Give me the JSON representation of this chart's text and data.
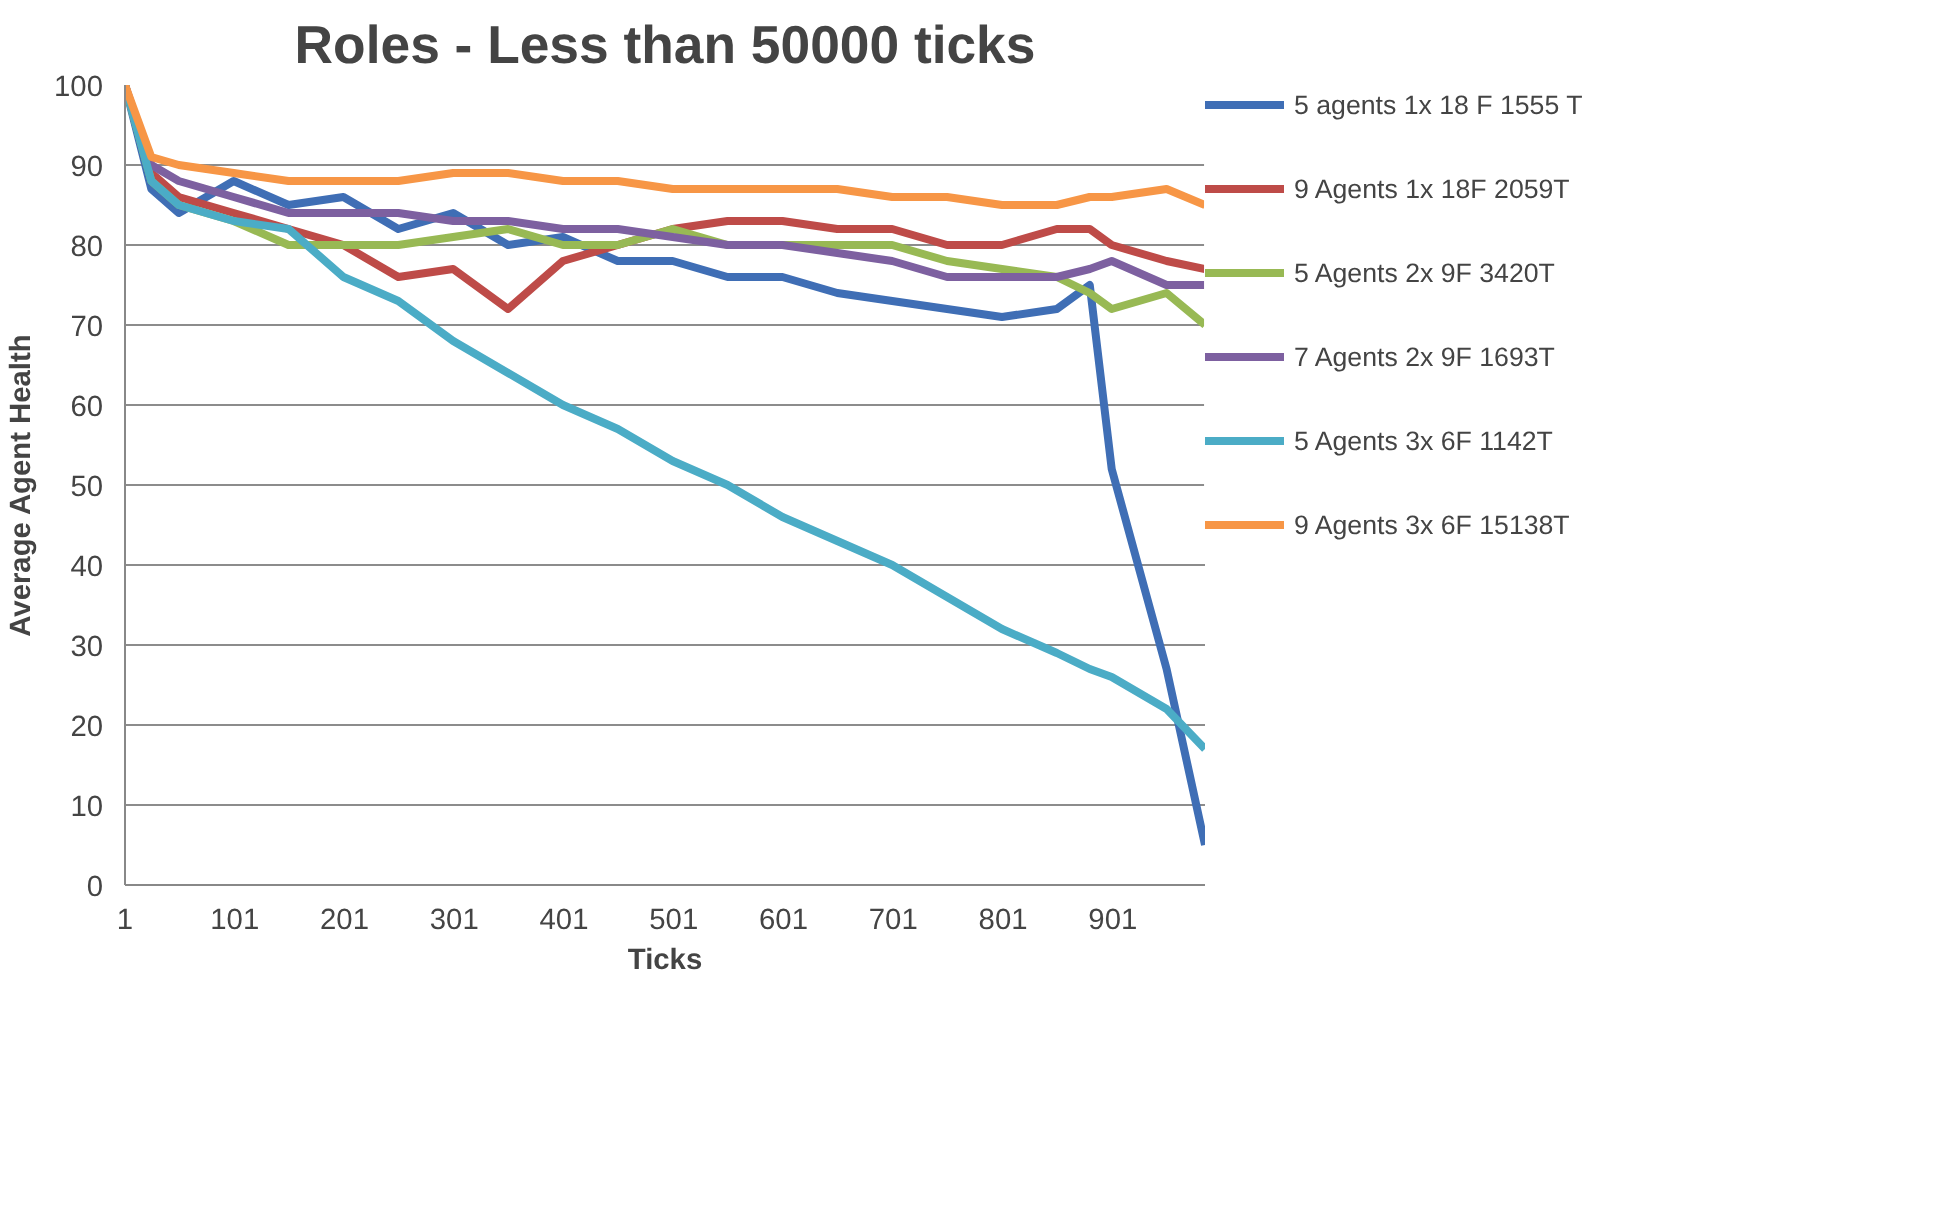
{
  "chart_data": {
    "type": "line",
    "title": "Roles - Less than 50000 ticks",
    "xlabel": "Ticks",
    "ylabel": "Average Agent Health",
    "x": [
      1,
      25,
      50,
      100,
      150,
      200,
      250,
      300,
      350,
      400,
      450,
      500,
      550,
      600,
      650,
      700,
      750,
      800,
      850,
      880,
      900,
      950,
      985
    ],
    "xlim": [
      1,
      985
    ],
    "xticks": [
      1,
      101,
      201,
      301,
      401,
      501,
      601,
      701,
      801,
      901
    ],
    "ylim": [
      0,
      100
    ],
    "yticks": [
      0,
      10,
      20,
      30,
      40,
      50,
      60,
      70,
      80,
      90,
      100
    ],
    "grid": "y",
    "legend": "right",
    "marker": "none",
    "line_style": "solid",
    "series": [
      {
        "name": "5 agents 1x 18 F 1555 T",
        "color": "#3f6eb5",
        "values": [
          100,
          87,
          84,
          88,
          85,
          86,
          82,
          84,
          80,
          81,
          78,
          78,
          76,
          76,
          74,
          73,
          72,
          71,
          72,
          75,
          52,
          27,
          5
        ]
      },
      {
        "name": "9 Agents 1x 18F 2059T",
        "color": "#be4b48",
        "values": [
          100,
          89,
          86,
          84,
          82,
          80,
          76,
          77,
          72,
          78,
          80,
          82,
          83,
          83,
          82,
          82,
          80,
          80,
          82,
          82,
          80,
          78,
          77
        ]
      },
      {
        "name": "5 Agents 2x 9F 3420T",
        "color": "#98b954",
        "values": [
          100,
          88,
          85,
          83,
          80,
          80,
          80,
          81,
          82,
          80,
          80,
          82,
          80,
          80,
          80,
          80,
          78,
          77,
          76,
          74,
          72,
          74,
          70
        ]
      },
      {
        "name": "7 Agents 2x 9F 1693T",
        "color": "#7d60a0",
        "values": [
          100,
          90,
          88,
          86,
          84,
          84,
          84,
          83,
          83,
          82,
          82,
          81,
          80,
          80,
          79,
          78,
          76,
          76,
          76,
          77,
          78,
          75,
          75
        ]
      },
      {
        "name": "5 Agents 3x 6F 1142T",
        "color": "#4bacc6",
        "values": [
          100,
          88,
          85,
          83,
          82,
          76,
          73,
          68,
          64,
          60,
          57,
          53,
          50,
          46,
          43,
          40,
          36,
          32,
          29,
          27,
          26,
          22,
          17
        ]
      },
      {
        "name": "9 Agents 3x 6F 15138T",
        "color": "#f79646",
        "values": [
          100,
          91,
          90,
          89,
          88,
          88,
          88,
          89,
          89,
          88,
          88,
          87,
          87,
          87,
          87,
          86,
          86,
          85,
          85,
          86,
          86,
          87,
          85
        ]
      }
    ]
  }
}
